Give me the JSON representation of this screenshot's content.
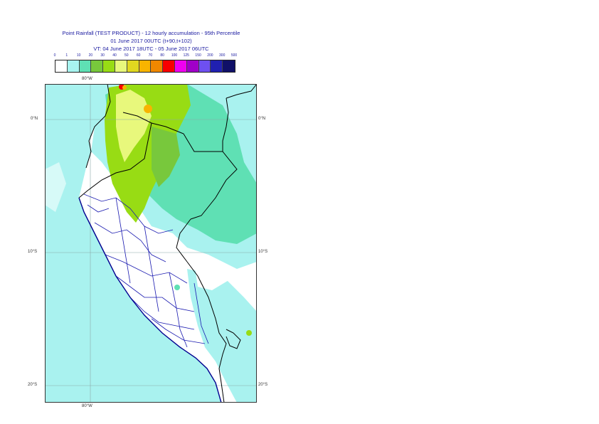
{
  "title": {
    "line1": "Point Rainfall (TEST PRODUCT) - 12 hourly accumulation - 95th Percentile",
    "line2": "01 June 2017 00UTC (t+90,t+102)",
    "line3": "VT: 04 June 2017 18UTC - 05 June 2017 06UTC"
  },
  "legend": {
    "ticks": [
      "0",
      "1",
      "10",
      "20",
      "30",
      "40",
      "50",
      "60",
      "70",
      "80",
      "100",
      "125",
      "150",
      "200",
      "300",
      "500"
    ],
    "colors": [
      "#ffffff",
      "#a8f4f0",
      "#5fe0b4",
      "#78c83c",
      "#98dc14",
      "#e8f87c",
      "#e0d820",
      "#f8b400",
      "#f08800",
      "#f80000",
      "#f000f0",
      "#a000c8",
      "#6e50f0",
      "#2020b0",
      "#101068"
    ]
  },
  "map": {
    "lon_labels": [
      "80°W",
      "80°W"
    ],
    "lat_labels_left": [
      "0°N",
      "10°S",
      "20°S"
    ],
    "lat_labels_right": [
      "0°N",
      "10°S",
      "20°S"
    ],
    "colors": {
      "sea_fill": "#a9f2ef",
      "dry_land": "#ffffff",
      "medium_rain": "#5fe0b4",
      "heavy_rain": "#98dc14",
      "very_heavy": "#e8f87c",
      "extreme": "#f8b400",
      "peak": "#f80000",
      "country_border": "#000000",
      "region_border": "#1a1ab0",
      "grid": "#8aa8a8"
    }
  }
}
